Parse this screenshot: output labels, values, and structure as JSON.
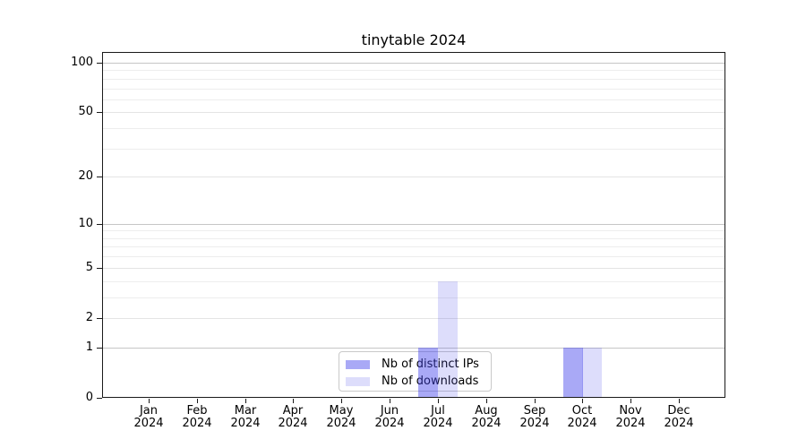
{
  "chart_data": {
    "type": "bar",
    "title": "tinytable 2024",
    "x_categories": [
      "Jan",
      "Feb",
      "Mar",
      "Apr",
      "May",
      "Jun",
      "Jul",
      "Aug",
      "Sep",
      "Oct",
      "Nov",
      "Dec"
    ],
    "x_year_label": "2024",
    "y_scale": "log1p",
    "ylim": [
      0,
      116
    ],
    "y_ticks": [
      0,
      1,
      2,
      5,
      10,
      20,
      50,
      100
    ],
    "y_minor_gridlines": [
      3,
      4,
      6,
      7,
      8,
      9,
      30,
      40,
      60,
      70,
      80,
      90
    ],
    "grid": "horizontal-only",
    "legend_position": "bottom-center-inside",
    "series": [
      {
        "name": "Nb of distinct IPs",
        "color": "rgba(64,64,235,0.45)",
        "color_hex_on_white": "#a9a9f4",
        "values": [
          0,
          0,
          0,
          0,
          0,
          0,
          1,
          0,
          0,
          1,
          0,
          0
        ]
      },
      {
        "name": "Nb of downloads",
        "color": "rgba(64,64,235,0.18)",
        "color_hex_on_white": "#dcdcf8",
        "values": [
          0,
          0,
          0,
          0,
          0,
          0,
          4,
          0,
          0,
          1,
          0,
          0
        ]
      }
    ],
    "style": {
      "background": "#ffffff",
      "spine_color": "#1a1a1a",
      "grid_decade_color": "#c6c6c6",
      "grid_major_color": "#e4e4e4",
      "grid_minor_color": "#ededed",
      "legend_border_color": "#c9c9c9",
      "text_color": "#000000"
    }
  }
}
